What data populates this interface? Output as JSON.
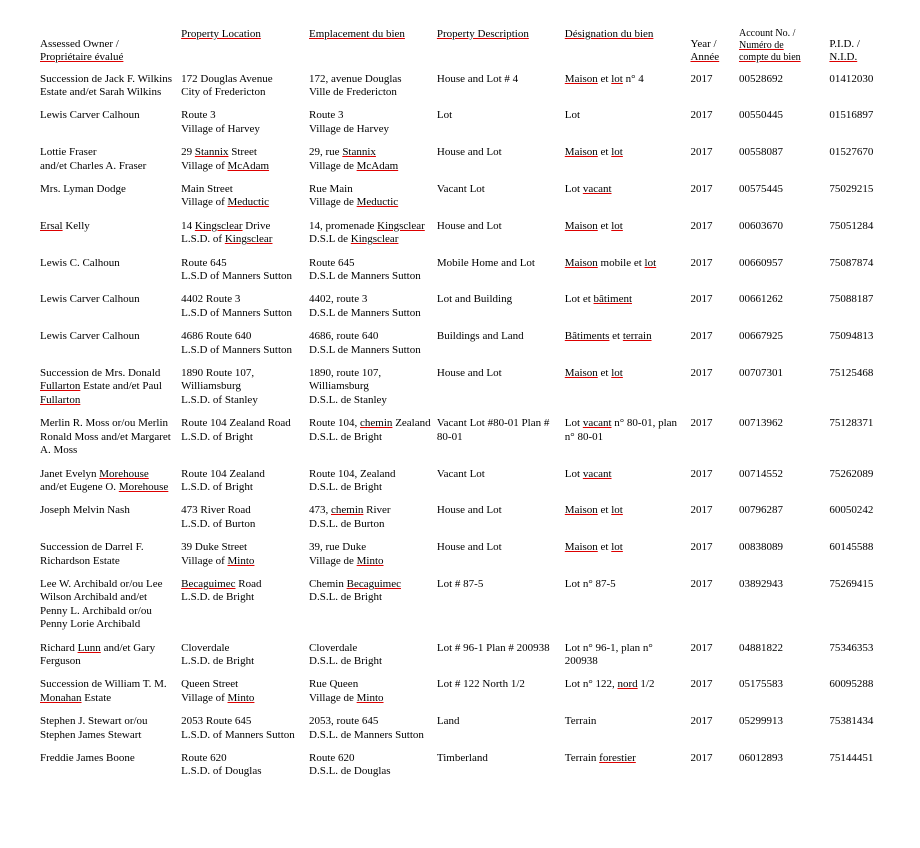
{
  "background_color": "#ffffff",
  "text_color": "#000000",
  "font_family": "Times New Roman",
  "headers": {
    "owner": {
      "l1": "Assessed Owner /",
      "l2": "Propriétaire évalué"
    },
    "loc": {
      "l1": "",
      "l2": "Property Location"
    },
    "emp": {
      "l1": "",
      "l2": "Emplacement du bien"
    },
    "desc": {
      "l1": "",
      "l2": "Property Description"
    },
    "desig": {
      "l1": "",
      "l2": "Désignation du bien"
    },
    "year": {
      "l1": "Year /",
      "l2": "Année"
    },
    "acct": {
      "l0": "Account No. /",
      "l1": "Numéro de",
      "l2": "compte du bien"
    },
    "pid": {
      "l1": "P.I.D. /",
      "l2": "N.I.D."
    }
  },
  "rows": [
    {
      "owner": "Succession de Jack F. Wilkins Estate and/et Sarah Wilkins",
      "loc": "172 Douglas Avenue\nCity of Fredericton",
      "emp": "172, avenue Douglas\nVille de Fredericton",
      "desc": "House and Lot # 4",
      "desig": "Maison et lot n° 4",
      "year": "2017",
      "acct": "00528692",
      "pid": "01412030"
    },
    {
      "owner": "Lewis Carver Calhoun",
      "loc": "Route 3\nVillage of Harvey",
      "emp": "Route 3\nVillage de Harvey",
      "desc": "Lot",
      "desig": "Lot",
      "year": "2017",
      "acct": "00550445",
      "pid": "01516897"
    },
    {
      "owner": "Lottie Fraser\nand/et Charles A. Fraser",
      "loc": "29 Stannix Street\nVillage of McAdam",
      "emp": "29, rue Stannix\nVillage de McAdam",
      "desc": "House and Lot",
      "desig": "Maison et lot",
      "year": "2017",
      "acct": "00558087",
      "pid": "01527670"
    },
    {
      "owner": "Mrs. Lyman Dodge",
      "loc": "Main Street\nVillage of Meductic",
      "emp": "Rue Main\nVillage de Meductic",
      "desc": "Vacant Lot",
      "desig": "Lot vacant",
      "year": "2017",
      "acct": "00575445",
      "pid": "75029215"
    },
    {
      "owner": "Ersal Kelly",
      "loc": "14 Kingsclear Drive\nL.S.D. of Kingsclear",
      "emp": "14, promenade Kingsclear\nD.S.L de Kingsclear",
      "desc": "House and Lot",
      "desig": "Maison et lot",
      "year": "2017",
      "acct": "00603670",
      "pid": "75051284"
    },
    {
      "owner": "Lewis C. Calhoun",
      "loc": "Route 645\nL.S.D of Manners Sutton",
      "emp": "Route 645\nD.S.L de Manners Sutton",
      "desc": "Mobile Home and Lot",
      "desig": "Maison mobile et lot",
      "year": "2017",
      "acct": "00660957",
      "pid": "75087874"
    },
    {
      "owner": "Lewis Carver Calhoun",
      "loc": "4402 Route 3\nL.S.D of Manners Sutton",
      "emp": "4402, route 3\nD.S.L de Manners Sutton",
      "desc": "Lot and Building",
      "desig": "Lot et bâtiment",
      "year": "2017",
      "acct": "00661262",
      "pid": "75088187"
    },
    {
      "owner": "Lewis Carver Calhoun",
      "loc": "4686 Route 640\nL.S.D of Manners Sutton",
      "emp": "4686, route 640\nD.S.L de Manners Sutton",
      "desc": "Buildings and Land",
      "desig": "Bâtiments et terrain",
      "year": "2017",
      "acct": "00667925",
      "pid": "75094813"
    },
    {
      "owner": "Succession de Mrs. Donald Fullarton Estate and/et Paul Fullarton",
      "loc": "1890 Route 107, Williamsburg\nL.S.D. of Stanley",
      "emp": "1890, route 107, Williamsburg\nD.S.L. de Stanley",
      "desc": "House and Lot",
      "desig": "Maison et lot",
      "year": "2017",
      "acct": "00707301",
      "pid": "75125468"
    },
    {
      "owner": "Merlin R. Moss or/ou Merlin Ronald Moss and/et Margaret A. Moss",
      "loc": "Route 104 Zealand Road\nL.S.D. of Bright",
      "emp": "Route 104, chemin Zealand\nD.S.L. de Bright",
      "desc": "Vacant Lot #80-01 Plan # 80-01",
      "desig": "Lot vacant n° 80-01, plan n° 80-01",
      "year": "2017",
      "acct": "00713962",
      "pid": "75128371"
    },
    {
      "owner": "Janet Evelyn Morehouse and/et Eugene O. Morehouse",
      "loc": "Route 104 Zealand\nL.S.D. of Bright",
      "emp": "Route 104, Zealand\nD.S.L. de Bright",
      "desc": "Vacant Lot",
      "desig": "Lot vacant",
      "year": "2017",
      "acct": "00714552",
      "pid": "75262089"
    },
    {
      "owner": "Joseph Melvin Nash",
      "loc": "473 River Road\nL.S.D. of Burton",
      "emp": "473, chemin River\nD.S.L. de Burton",
      "desc": "House and Lot",
      "desig": "Maison et lot",
      "year": "2017",
      "acct": "00796287",
      "pid": "60050242"
    },
    {
      "owner": "Succession de Darrel F. Richardson Estate",
      "loc": "39 Duke Street\nVillage of Minto",
      "emp": "39, rue Duke\nVillage de Minto",
      "desc": "House and Lot",
      "desig": "Maison et lot",
      "year": "2017",
      "acct": "00838089",
      "pid": "60145588"
    },
    {
      "owner": "Lee W. Archibald or/ou Lee Wilson Archibald and/et Penny L. Archibald or/ou Penny Lorie Archibald",
      "loc": "Becaguimec Road\nL.S.D. de Bright",
      "emp": "Chemin Becaguimec\nD.S.L. de Bright",
      "desc": "Lot # 87-5",
      "desig": "Lot n° 87-5",
      "year": "2017",
      "acct": "03892943",
      "pid": "75269415"
    },
    {
      "owner": "Richard Lunn and/et Gary Ferguson",
      "loc": "Cloverdale\nL.S.D. de Bright",
      "emp": "Cloverdale\nD.S.L. de Bright",
      "desc": "Lot # 96-1 Plan # 200938",
      "desig": "Lot n° 96-1, plan n° 200938",
      "year": "2017",
      "acct": "04881822",
      "pid": "75346353"
    },
    {
      "owner": "Succession de William T. M. Monahan Estate",
      "loc": "Queen Street\nVillage of Minto",
      "emp": "Rue Queen\nVillage de Minto",
      "desc": "Lot # 122 North 1/2",
      "desig": "Lot n° 122, nord 1/2",
      "year": "2017",
      "acct": "05175583",
      "pid": "60095288"
    },
    {
      "owner": "Stephen J. Stewart or/ou Stephen James Stewart",
      "loc": "2053 Route 645\nL.S.D. of Manners Sutton",
      "emp": "2053, route 645\nD.S.L. de Manners Sutton",
      "desc": "Land",
      "desig": "Terrain",
      "year": "2017",
      "acct": "05299913",
      "pid": "75381434"
    },
    {
      "owner": "Freddie James Boone",
      "loc": "Route 620\nL.S.D. of Douglas",
      "emp": "Route 620\nD.S.L. de Douglas",
      "desc": "Timberland",
      "desig": "Terrain forestier",
      "year": "2017",
      "acct": "06012893",
      "pid": "75144451"
    }
  ]
}
